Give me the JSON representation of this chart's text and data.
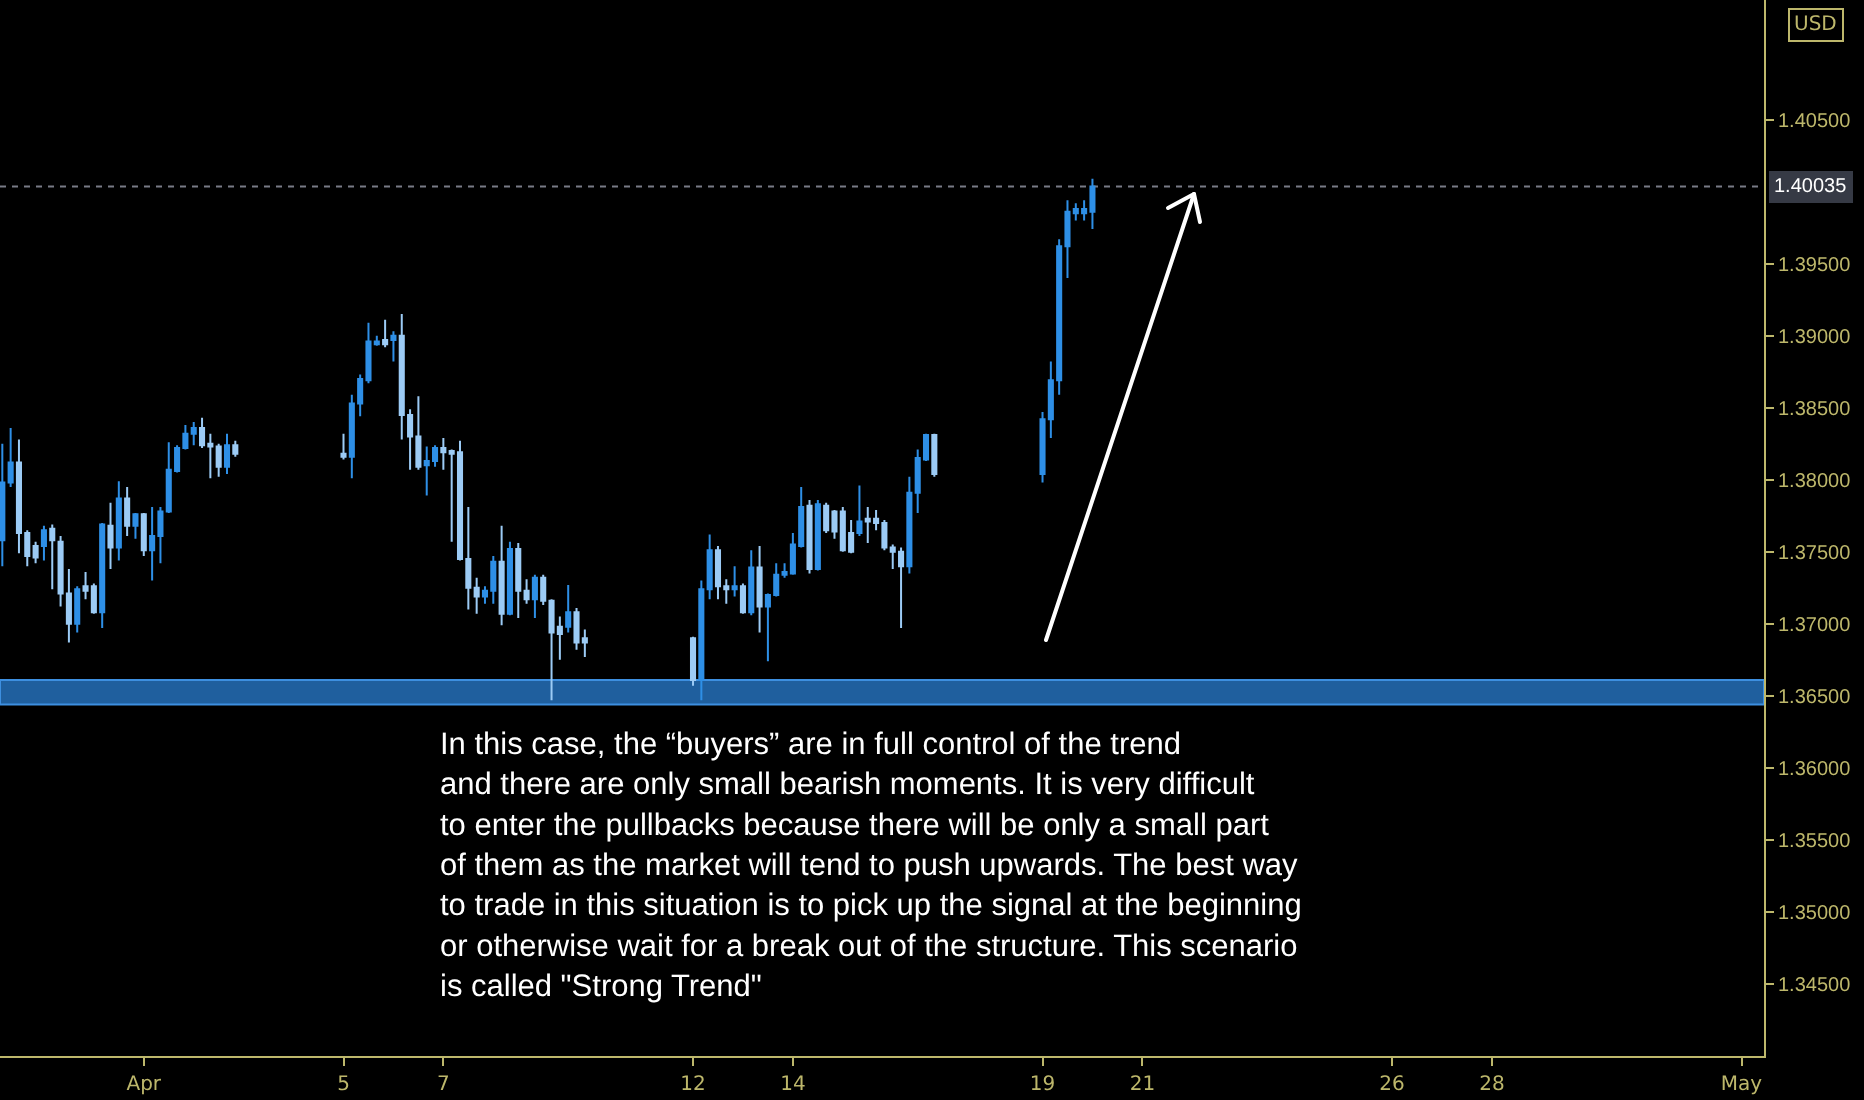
{
  "chart_data": {
    "type": "candlestick",
    "ylabel": "USD",
    "xlim": [
      "--03-29T02:53",
      "--05-03T10:48"
    ],
    "xticks": [
      {
        "value": "--04-01",
        "label": "Apr"
      },
      {
        "value": "--04-05",
        "label": "5"
      },
      {
        "value": "--04-07",
        "label": "7"
      },
      {
        "value": "--04-12",
        "label": "12"
      },
      {
        "value": "--04-14",
        "label": "14"
      },
      {
        "value": "--04-19",
        "label": "19"
      },
      {
        "value": "--04-21",
        "label": "21"
      },
      {
        "value": "--04-26",
        "label": "26"
      },
      {
        "value": "--04-28",
        "label": "28"
      },
      {
        "value": "--05-03",
        "label": "May"
      }
    ],
    "ylim": [
      1.34,
      1.4133
    ],
    "yticks": [
      {
        "value": 1.345,
        "label": "1.34500"
      },
      {
        "value": 1.35,
        "label": "1.35000"
      },
      {
        "value": 1.355,
        "label": "1.35500"
      },
      {
        "value": 1.36,
        "label": "1.36000"
      },
      {
        "value": 1.365,
        "label": "1.36500"
      },
      {
        "value": 1.37,
        "label": "1.37000"
      },
      {
        "value": 1.375,
        "label": "1.37500"
      },
      {
        "value": 1.38,
        "label": "1.38000"
      },
      {
        "value": 1.385,
        "label": "1.38500"
      },
      {
        "value": 1.39,
        "label": "1.39000"
      },
      {
        "value": 1.395,
        "label": "1.39500"
      },
      {
        "value": 1.405,
        "label": "1.40500"
      }
    ],
    "ref_lines": [
      {
        "axis": "y",
        "value": 1.40035,
        "label": "1.40035",
        "color": "#787b86",
        "line_style": "dotted"
      }
    ],
    "bands": [
      {
        "axis": "y",
        "from": 1.3644,
        "to": 1.3661,
        "color": "#1f5f9e"
      }
    ],
    "annotations": [
      "In this case, the “buyers” are in full control of the trend\nand there are only small bearish moments. It is very difficult\nto enter the pullbacks because there will be only a small part\nof them as the market will tend to push upwards. The best way\nto trade in this situation is to pick up the signal at the beginning\nor otherwise wait for a break out of the structure. This scenario\nis called \"Strong Trend\""
    ],
    "series": [
      {
        "color": "#2e8fe6",
        "x": [
          "--03-29T04:00",
          "--03-29T08:00",
          "--03-30T00:00",
          "--03-30T16:00",
          "--03-31T04:00",
          "--03-31T12:00",
          "--03-31T20:00",
          "--04-01T04:00",
          "--04-01T08:00",
          "--04-01T12:00",
          "--04-01T16:00",
          "--04-01T20:00",
          "--04-02T00:00",
          "--04-02T16:00",
          "--04-05T04:00",
          "--04-05T08:00",
          "--04-05T12:00",
          "--04-05T16:00",
          "--04-06T00:00",
          "--04-06T16:00",
          "--04-06T20:00",
          "--04-07T20:00",
          "--04-08T00:00",
          "--04-08T08:00",
          "--04-08T20:00",
          "--04-09T12:00",
          "--04-12T04:00",
          "--04-12T08:00",
          "--04-12T20:00",
          "--04-13T04:00",
          "--04-13T12:00",
          "--04-13T16:00",
          "--04-13T20:00",
          "--04-14T00:00",
          "--04-14T04:00",
          "--04-14T12:00",
          "--04-15T08:00",
          "--04-16T08:00",
          "--04-16T12:00",
          "--04-16T16:00",
          "--04-19T00:00",
          "--04-19T04:00",
          "--04-19T08:00",
          "--04-19T12:00",
          "--04-19T16:00",
          "--04-19T20:00",
          "--04-20T00:00"
        ],
        "ohlc": [
          [
            1.3758,
            1.3825,
            1.374,
            1.3798
          ],
          [
            1.3798,
            1.3836,
            1.3795,
            1.3812
          ],
          [
            1.3754,
            1.3768,
            1.3744,
            1.3765
          ],
          [
            1.37,
            1.3726,
            1.3694,
            1.3724
          ],
          [
            1.3708,
            1.377,
            1.3697,
            1.3769
          ],
          [
            1.3753,
            1.3799,
            1.3744,
            1.3787
          ],
          [
            1.3768,
            1.3777,
            1.3759,
            1.3776
          ],
          [
            1.3751,
            1.3781,
            1.373,
            1.3761
          ],
          [
            1.3761,
            1.3781,
            1.3742,
            1.3778
          ],
          [
            1.3778,
            1.3826,
            1.3777,
            1.3807
          ],
          [
            1.3806,
            1.3824,
            1.3805,
            1.3822
          ],
          [
            1.3822,
            1.3838,
            1.3821,
            1.3832
          ],
          [
            1.3832,
            1.384,
            1.3824,
            1.3836
          ],
          [
            1.3809,
            1.3832,
            1.3804,
            1.3824
          ],
          [
            1.3816,
            1.3859,
            1.3801,
            1.3853
          ],
          [
            1.3853,
            1.3873,
            1.3844,
            1.387
          ],
          [
            1.3869,
            1.3909,
            1.3867,
            1.3896
          ],
          [
            1.3894,
            1.39,
            1.3893,
            1.3896
          ],
          [
            1.3897,
            1.3903,
            1.3882,
            1.39
          ],
          [
            1.381,
            1.3823,
            1.3789,
            1.3813
          ],
          [
            1.3813,
            1.3824,
            1.3809,
            1.3822
          ],
          [
            1.3719,
            1.3726,
            1.3714,
            1.3723
          ],
          [
            1.3723,
            1.3747,
            1.3714,
            1.3743
          ],
          [
            1.3707,
            1.3757,
            1.3706,
            1.3752
          ],
          [
            1.3717,
            1.3734,
            1.3704,
            1.3732
          ],
          [
            1.3698,
            1.3727,
            1.3694,
            1.3708
          ],
          [
            1.3661,
            1.373,
            1.3647,
            1.3724
          ],
          [
            1.3724,
            1.3762,
            1.3717,
            1.3751
          ],
          [
            1.3724,
            1.374,
            1.3719,
            1.3726
          ],
          [
            1.3708,
            1.3751,
            1.3706,
            1.3739
          ],
          [
            1.3712,
            1.3721,
            1.3674,
            1.372
          ],
          [
            1.372,
            1.3742,
            1.3719,
            1.3734
          ],
          [
            1.3734,
            1.3742,
            1.3732,
            1.3736
          ],
          [
            1.3735,
            1.3763,
            1.3734,
            1.3755
          ],
          [
            1.3754,
            1.3795,
            1.3753,
            1.3781
          ],
          [
            1.3738,
            1.3786,
            1.3737,
            1.3783
          ],
          [
            1.3763,
            1.3796,
            1.3761,
            1.3771
          ],
          [
            1.374,
            1.3802,
            1.3735,
            1.3791
          ],
          [
            1.3791,
            1.3821,
            1.3777,
            1.3815
          ],
          [
            1.3814,
            1.3832,
            1.3813,
            1.3831
          ],
          [
            1.3804,
            1.3847,
            1.3798,
            1.3842
          ],
          [
            1.3842,
            1.3882,
            1.3829,
            1.3869
          ],
          [
            1.3869,
            1.3967,
            1.3859,
            1.3962
          ],
          [
            1.3962,
            1.3994,
            1.394,
            1.3986
          ],
          [
            1.3985,
            1.3992,
            1.398,
            1.3988
          ],
          [
            1.3985,
            1.3994,
            1.398,
            1.3988
          ],
          [
            1.3986,
            1.4009,
            1.3974,
            1.40035
          ]
        ]
      },
      {
        "color": "#9ccbf5",
        "x": [
          "--03-29T12:00",
          "--03-29T16:00",
          "--03-29T20:00",
          "--03-30T04:00",
          "--03-30T08:00",
          "--03-30T12:00",
          "--03-30T20:00",
          "--03-31T00:00",
          "--03-31T08:00",
          "--03-31T16:00",
          "--04-01T00:00",
          "--04-02T04:00",
          "--04-02T08:00",
          "--04-02T12:00",
          "--04-02T20:00",
          "--04-05T00:00",
          "--04-05T20:00",
          "--04-06T04:00",
          "--04-06T08:00",
          "--04-06T12:00",
          "--04-07T00:00",
          "--04-07T04:00",
          "--04-07T08:00",
          "--04-07T12:00",
          "--04-07T16:00",
          "--04-08T04:00",
          "--04-08T12:00",
          "--04-08T16:00",
          "--04-09T00:00",
          "--04-09T04:00",
          "--04-09T08:00",
          "--04-09T16:00",
          "--04-09T20:00",
          "--04-12T00:00",
          "--04-12T12:00",
          "--04-12T16:00",
          "--04-13T00:00",
          "--04-13T08:00",
          "--04-14T08:00",
          "--04-14T16:00",
          "--04-14T20:00",
          "--04-15T00:00",
          "--04-15T04:00",
          "--04-15T12:00",
          "--04-15T16:00",
          "--04-15T20:00",
          "--04-16T00:00",
          "--04-16T04:00",
          "--04-16T20:00"
        ],
        "ohlc": [
          [
            1.3812,
            1.3828,
            1.3749,
            1.3763
          ],
          [
            1.3763,
            1.3765,
            1.374,
            1.3747
          ],
          [
            1.3754,
            1.3757,
            1.3742,
            1.3746
          ],
          [
            1.3766,
            1.3769,
            1.3724,
            1.3758
          ],
          [
            1.3757,
            1.3761,
            1.3712,
            1.3721
          ],
          [
            1.3721,
            1.3738,
            1.3687,
            1.37
          ],
          [
            1.3726,
            1.3736,
            1.3717,
            1.3723
          ],
          [
            1.3726,
            1.3728,
            1.3707,
            1.3708
          ],
          [
            1.3768,
            1.3784,
            1.3738,
            1.3753
          ],
          [
            1.3787,
            1.3795,
            1.3761,
            1.3768
          ],
          [
            1.3776,
            1.3777,
            1.3747,
            1.3751
          ],
          [
            1.3836,
            1.3843,
            1.3822,
            1.3824
          ],
          [
            1.3825,
            1.3832,
            1.3801,
            1.3823
          ],
          [
            1.3823,
            1.3825,
            1.3802,
            1.3809
          ],
          [
            1.3824,
            1.3827,
            1.3816,
            1.3818
          ],
          [
            1.3818,
            1.3832,
            1.3814,
            1.3816
          ],
          [
            1.3897,
            1.3911,
            1.3892,
            1.3894
          ],
          [
            1.39,
            1.3915,
            1.3828,
            1.3845
          ],
          [
            1.3845,
            1.3849,
            1.3807,
            1.383
          ],
          [
            1.383,
            1.3858,
            1.3807,
            1.3809
          ],
          [
            1.3822,
            1.3829,
            1.3807,
            1.3819
          ],
          [
            1.382,
            1.3821,
            1.3757,
            1.3818
          ],
          [
            1.3819,
            1.3827,
            1.3744,
            1.3745
          ],
          [
            1.3745,
            1.3781,
            1.371,
            1.3725
          ],
          [
            1.3725,
            1.3732,
            1.3707,
            1.3719
          ],
          [
            1.3743,
            1.3768,
            1.3699,
            1.3707
          ],
          [
            1.3752,
            1.3756,
            1.3704,
            1.3723
          ],
          [
            1.3723,
            1.3731,
            1.3714,
            1.3717
          ],
          [
            1.3732,
            1.3734,
            1.3713,
            1.3716
          ],
          [
            1.3716,
            1.3717,
            1.3647,
            1.3694
          ],
          [
            1.3698,
            1.3705,
            1.3675,
            1.3693
          ],
          [
            1.3708,
            1.3711,
            1.3682,
            1.3687
          ],
          [
            1.369,
            1.3696,
            1.3677,
            1.3687
          ],
          [
            1.369,
            1.3691,
            1.3657,
            1.3661
          ],
          [
            1.3751,
            1.3754,
            1.3717,
            1.3726
          ],
          [
            1.3726,
            1.3731,
            1.3714,
            1.3724
          ],
          [
            1.3726,
            1.3728,
            1.3707,
            1.3708
          ],
          [
            1.3739,
            1.3754,
            1.3694,
            1.3712
          ],
          [
            1.3782,
            1.3786,
            1.3735,
            1.3738
          ],
          [
            1.3782,
            1.3784,
            1.3763,
            1.3765
          ],
          [
            1.3778,
            1.3779,
            1.3759,
            1.3764
          ],
          [
            1.3778,
            1.3781,
            1.375,
            1.3751
          ],
          [
            1.3763,
            1.3772,
            1.3749,
            1.375
          ],
          [
            1.3773,
            1.3781,
            1.3756,
            1.3771
          ],
          [
            1.3773,
            1.3779,
            1.3765,
            1.377
          ],
          [
            1.377,
            1.3772,
            1.3751,
            1.3753
          ],
          [
            1.3753,
            1.3755,
            1.3738,
            1.375
          ],
          [
            1.375,
            1.3753,
            1.3697,
            1.374
          ],
          [
            1.3831,
            1.3832,
            1.3802,
            1.3804
          ]
        ]
      }
    ]
  }
}
